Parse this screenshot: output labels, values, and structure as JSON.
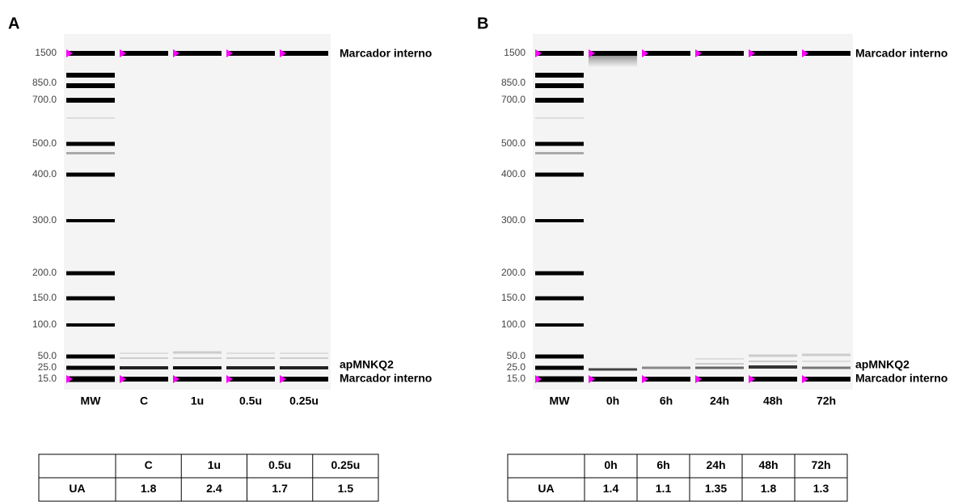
{
  "panels": [
    {
      "label": "A",
      "ladder": [
        "1500",
        "850.0",
        "700.0",
        "500.0",
        "400.0",
        "300.0",
        "200.0",
        "150.0",
        "100.0",
        "50.0",
        "25.0",
        "15.0"
      ],
      "lanes": [
        "MW",
        "C",
        "1u",
        "0.5u",
        "0.25u"
      ],
      "annotations": [
        "Marcador interno",
        "apMNKQ2",
        "Marcador interno"
      ],
      "table": {
        "header": [
          "C",
          "1u",
          "0.5u",
          "0.25u"
        ],
        "row_label": "UA",
        "values": [
          1.8,
          2.4,
          1.7,
          1.5
        ]
      }
    },
    {
      "label": "B",
      "ladder": [
        "1500",
        "850.0",
        "700.0",
        "500.0",
        "400.0",
        "300.0",
        "200.0",
        "150.0",
        "100.0",
        "50.0",
        "25.0",
        "15.0"
      ],
      "lanes": [
        "MW",
        "0h",
        "6h",
        "24h",
        "48h",
        "72h"
      ],
      "annotations": [
        "Marcador interno",
        "apMNKQ2",
        "Marcador interno"
      ],
      "table": {
        "header": [
          "0h",
          "6h",
          "24h",
          "48h",
          "72h"
        ],
        "row_label": "UA",
        "values": [
          1.4,
          1.1,
          1.35,
          1.8,
          1.3
        ]
      }
    }
  ]
}
